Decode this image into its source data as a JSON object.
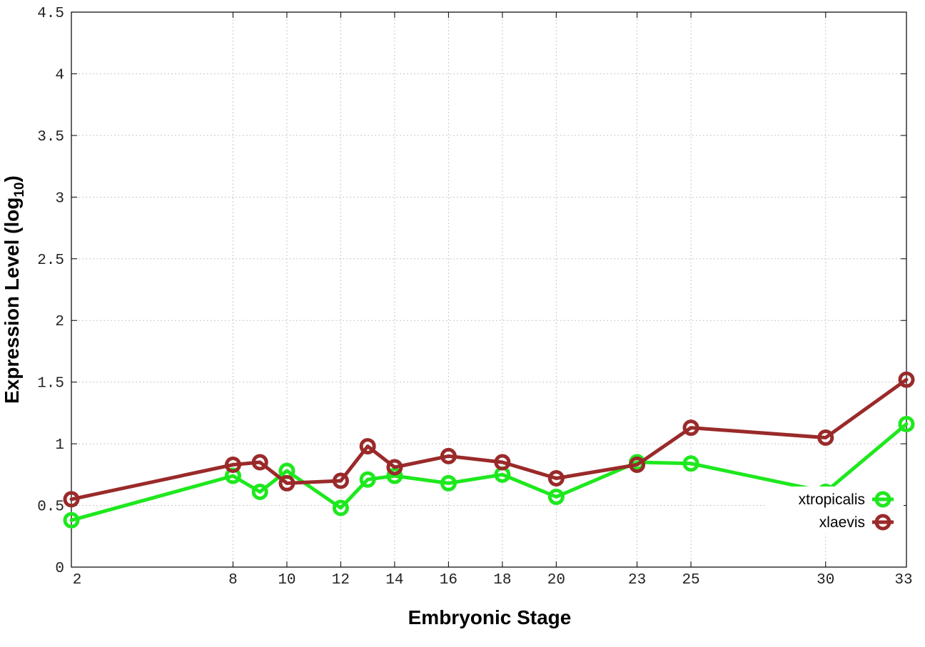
{
  "chart_data": {
    "type": "line",
    "xlabel": "Embryonic Stage",
    "ylabel_main": "Expression Level (log",
    "ylabel_sub": "10",
    "ylabel_close": ")",
    "xlim": [
      2,
      33
    ],
    "ylim": [
      0,
      4.5
    ],
    "xticks": [
      2,
      8,
      10,
      12,
      14,
      16,
      18,
      20,
      23,
      25,
      30,
      33
    ],
    "xtick_labels": [
      "2",
      "8",
      "10",
      "12",
      "14",
      "16",
      "18",
      "20",
      "23",
      "25",
      "30",
      "33"
    ],
    "yticks": [
      0,
      0.5,
      1,
      1.5,
      2,
      2.5,
      3,
      3.5,
      4,
      4.5
    ],
    "ytick_labels": [
      "0",
      "0.5",
      "1",
      "1.5",
      "2",
      "2.5",
      "3",
      "3.5",
      "4",
      "4.5"
    ],
    "grid": true,
    "legend_position": "bottom-right",
    "x": [
      2,
      8,
      9,
      10,
      12,
      13,
      14,
      16,
      18,
      20,
      23,
      25,
      30,
      33
    ],
    "series": [
      {
        "name": "xtropicalis",
        "color": "#1ee81e",
        "values": [
          0.38,
          0.74,
          0.61,
          0.78,
          0.48,
          0.71,
          0.74,
          0.68,
          0.75,
          0.57,
          0.85,
          0.84,
          0.61,
          1.16
        ]
      },
      {
        "name": "xlaevis",
        "color": "#9a2a2a",
        "values": [
          0.55,
          0.83,
          0.85,
          0.68,
          0.7,
          0.98,
          0.81,
          0.9,
          0.85,
          0.72,
          0.83,
          1.13,
          1.05,
          1.52
        ]
      }
    ]
  }
}
